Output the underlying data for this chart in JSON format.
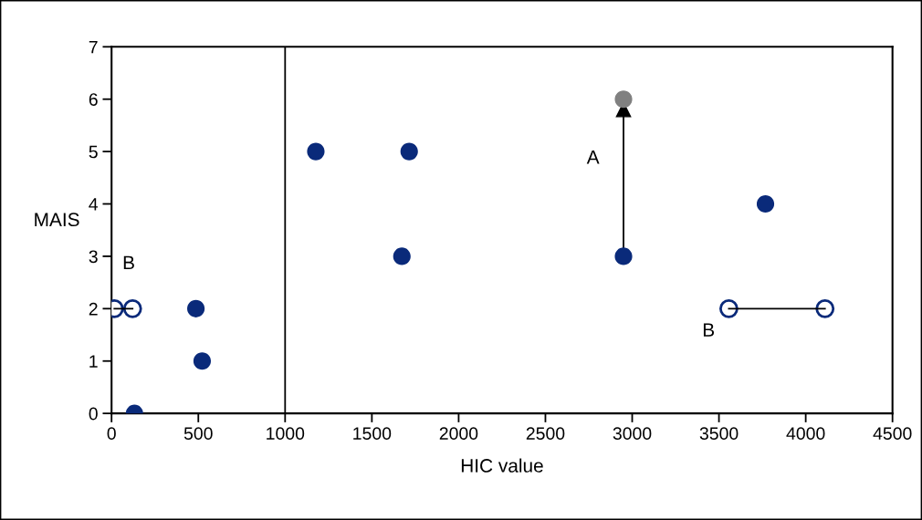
{
  "chart_data": {
    "type": "scatter",
    "xlabel": "HIC value",
    "ylabel": "MAIS",
    "xlim": [
      0,
      4500
    ],
    "xticks": [
      0,
      500,
      1000,
      1500,
      2000,
      2500,
      3000,
      3500,
      4000,
      4500
    ],
    "ylim": [
      0,
      7
    ],
    "yticks": [
      0,
      1,
      2,
      3,
      4,
      5,
      6,
      7
    ],
    "grid": false,
    "legend": false,
    "series": [
      {
        "type": "line",
        "color": "#0a2a7a",
        "marker": "circle",
        "x": [
          16,
          121
        ],
        "values": [
          2,
          2
        ]
      },
      {
        "type": "line",
        "color": "#0a2a7a",
        "marker": "circle",
        "x": [
          3557,
          4111
        ],
        "values": [
          2,
          2
        ]
      },
      {
        "type": "line",
        "color": "#000000",
        "marker": "triangle",
        "x": [
          2950,
          2950
        ],
        "values": [
          3,
          5.8
        ]
      },
      {
        "color": "#0a2a7a",
        "x": [
          132,
          486,
          522,
          1177,
          1715,
          1673,
          2950,
          3768
        ],
        "values": [
          0,
          2,
          1,
          5,
          5,
          3,
          3,
          4
        ]
      },
      {
        "color": "#808080",
        "x": [
          2950
        ],
        "values": [
          6
        ]
      }
    ],
    "ref_lines": [
      {
        "axis": "x",
        "value": 1000,
        "color": "#000000"
      }
    ],
    "annotations": [
      {
        "text": "A",
        "x": 2950,
        "y": 4.62
      },
      {
        "text": "B",
        "x": 121,
        "y": 2
      },
      {
        "text": "B",
        "x": 3557,
        "y": 2
      }
    ]
  }
}
